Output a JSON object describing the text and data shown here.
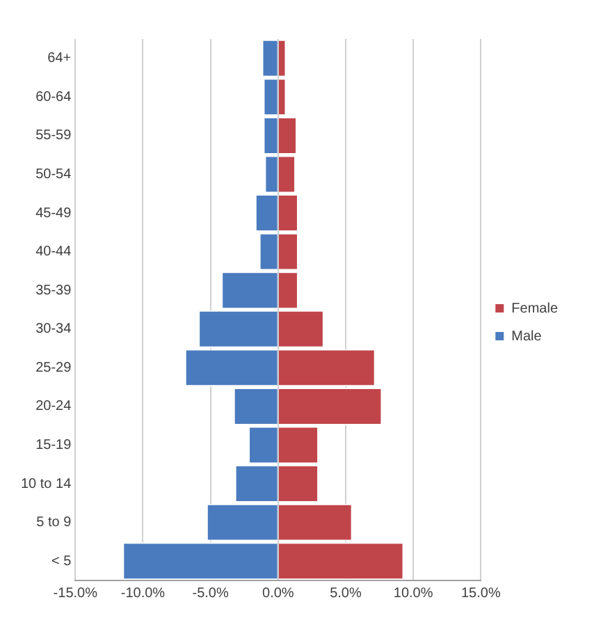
{
  "chart_data": {
    "type": "bar",
    "orientation": "horizontal",
    "stacked": true,
    "categories": [
      "64+",
      "60-64",
      "55-59",
      "50-54",
      "45-49",
      "40-44",
      "35-39",
      "30-34",
      "25-29",
      "20-24",
      "15-19",
      "10 to 14",
      "5 to 9",
      "< 5"
    ],
    "series": [
      {
        "name": "Female",
        "color": "#c0454a",
        "values": [
          0.6,
          0.6,
          1.4,
          1.3,
          1.5,
          1.5,
          1.5,
          3.4,
          7.2,
          7.7,
          3.0,
          3.0,
          5.5,
          9.3
        ]
      },
      {
        "name": "Male",
        "color": "#4a7bbf",
        "values": [
          -1.2,
          -1.1,
          -1.1,
          -1.0,
          -1.7,
          -1.4,
          -4.2,
          -5.9,
          -6.9,
          -3.3,
          -2.2,
          -3.2,
          -5.3,
          -11.5
        ]
      }
    ],
    "xlim": [
      -15,
      15
    ],
    "xticks": [
      {
        "value": -15,
        "label": "-15.0%"
      },
      {
        "value": -10,
        "label": "-10.0%"
      },
      {
        "value": -5,
        "label": "-5.0%"
      },
      {
        "value": 0,
        "label": "0.0%"
      },
      {
        "value": 5,
        "label": "5.0%"
      },
      {
        "value": 10,
        "label": "10.0%"
      },
      {
        "value": 15,
        "label": "15.0%"
      }
    ],
    "grid": "x",
    "legend": "right"
  }
}
